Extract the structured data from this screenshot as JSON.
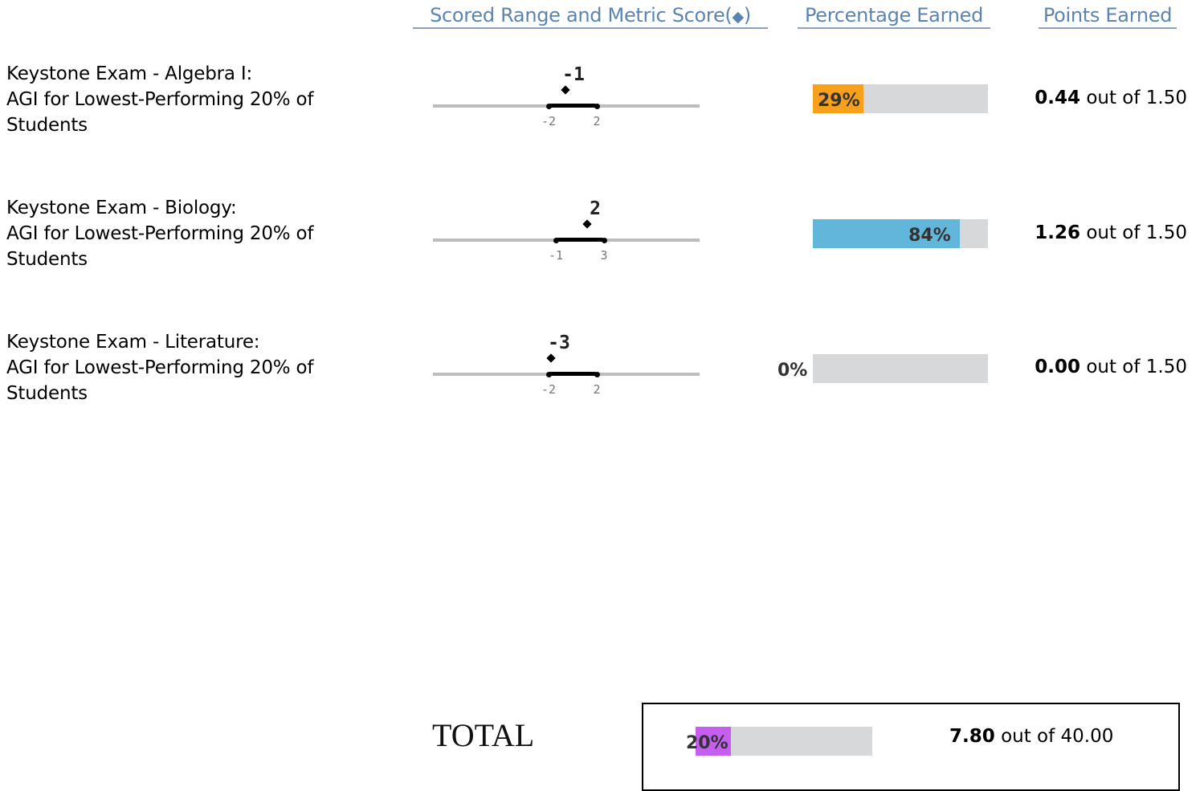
{
  "headers": {
    "range": "Scored Range and Metric Score",
    "range_paren_open": "(",
    "range_paren_close": ")",
    "range_symbol": "◆",
    "percent": "Percentage Earned",
    "points": "Points Earned"
  },
  "metrics": [
    {
      "line1": "Keystone Exam - Algebra I:",
      "line2": "AGI for Lowest-Performing 20% of",
      "line3": "Students",
      "score": "-1",
      "range_low": "-2",
      "range_high": "2",
      "score_value": -1,
      "range_low_value": -2,
      "range_high_value": 2,
      "percent_label": "29%",
      "percent_value": 29,
      "bar_color": "#f7a01c",
      "points_earned": "0.44",
      "points_of": "out of",
      "points_max": "1.50"
    },
    {
      "line1": "Keystone Exam - Biology:",
      "line2": "AGI for Lowest-Performing 20% of",
      "line3": "Students",
      "score": "2",
      "range_low": "-1",
      "range_high": "3",
      "score_value": 2,
      "range_low_value": -1,
      "range_high_value": 3,
      "percent_label": "84%",
      "percent_value": 84,
      "bar_color": "#62b6da",
      "points_earned": "1.26",
      "points_of": "out of",
      "points_max": "1.50"
    },
    {
      "line1": "Keystone Exam - Literature:",
      "line2": "AGI for Lowest-Performing 20% of",
      "line3": "Students",
      "score": "-3",
      "range_low": "-2",
      "range_high": "2",
      "score_value": -3,
      "range_low_value": -2,
      "range_high_value": 2,
      "percent_label": "0%",
      "percent_value": 0,
      "bar_color": "#f7a01c",
      "points_earned": "0.00",
      "points_of": "out of",
      "points_max": "1.50"
    }
  ],
  "total": {
    "label": "TOTAL",
    "percent_label": "20%",
    "percent_value": 20,
    "bar_color": "#c65ef0",
    "points_earned": "7.80",
    "points_of": "out of",
    "points_max": "40.00"
  }
}
